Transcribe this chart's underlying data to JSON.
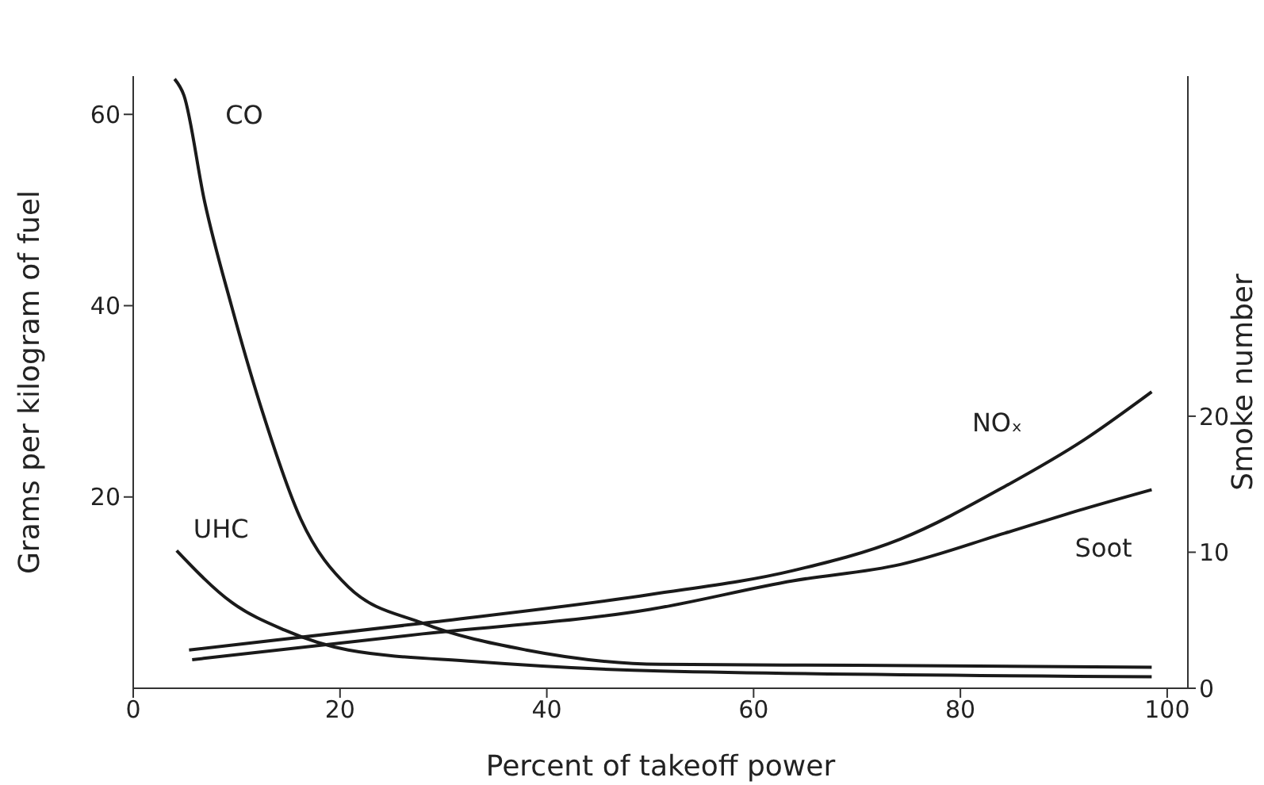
{
  "chart_data": {
    "type": "line",
    "xlabel": "Percent of takeoff power",
    "ylabel": "Grams per kilogram of fuel",
    "y2label": "Smoke number",
    "xlim": [
      0,
      102
    ],
    "xticks": [
      0,
      20,
      40,
      60,
      80,
      100
    ],
    "ylim": [
      0,
      64
    ],
    "yticks": [
      20,
      40,
      60
    ],
    "y2lim": [
      0,
      45
    ],
    "y2ticks": [
      0,
      10,
      20
    ],
    "legend": false,
    "grid": false,
    "marker": "none",
    "line_style": "solid",
    "series": [
      {
        "name": "CO",
        "color": "#1a1a1a",
        "x": [
          4,
          4.9,
          6.9,
          9.5,
          12.5,
          16.2,
          20.8,
          28,
          38,
          51,
          70,
          98.5
        ],
        "values": [
          63.7,
          62,
          50.9,
          40,
          28.9,
          17.7,
          10.6,
          6.8,
          4,
          2.5,
          2.4,
          2.2
        ]
      },
      {
        "name": "UHC",
        "color": "#1a1a1a",
        "x": [
          4.2,
          9.5,
          14.6,
          20.8,
          33,
          51,
          98.5
        ],
        "values": [
          14.4,
          9,
          6.1,
          4,
          2.8,
          1.8,
          1.2
        ]
      },
      {
        "name": "NOₓ",
        "color": "#1a1a1a",
        "x": [
          5.4,
          28,
          50,
          63.8,
          74.2,
          84.3,
          92,
          98.5
        ],
        "values": [
          4,
          6.8,
          9.8,
          12.3,
          15.6,
          21.1,
          26,
          31
        ]
      },
      {
        "name": "Soot",
        "color": "#1a1a1a",
        "axis": "y2",
        "x": [
          5.7,
          28,
          50,
          63.8,
          74.2,
          84.3,
          92,
          98.5
        ],
        "values": [
          2.1,
          4,
          5.8,
          7.9,
          9.1,
          11.4,
          13.2,
          14.6
        ]
      }
    ]
  }
}
